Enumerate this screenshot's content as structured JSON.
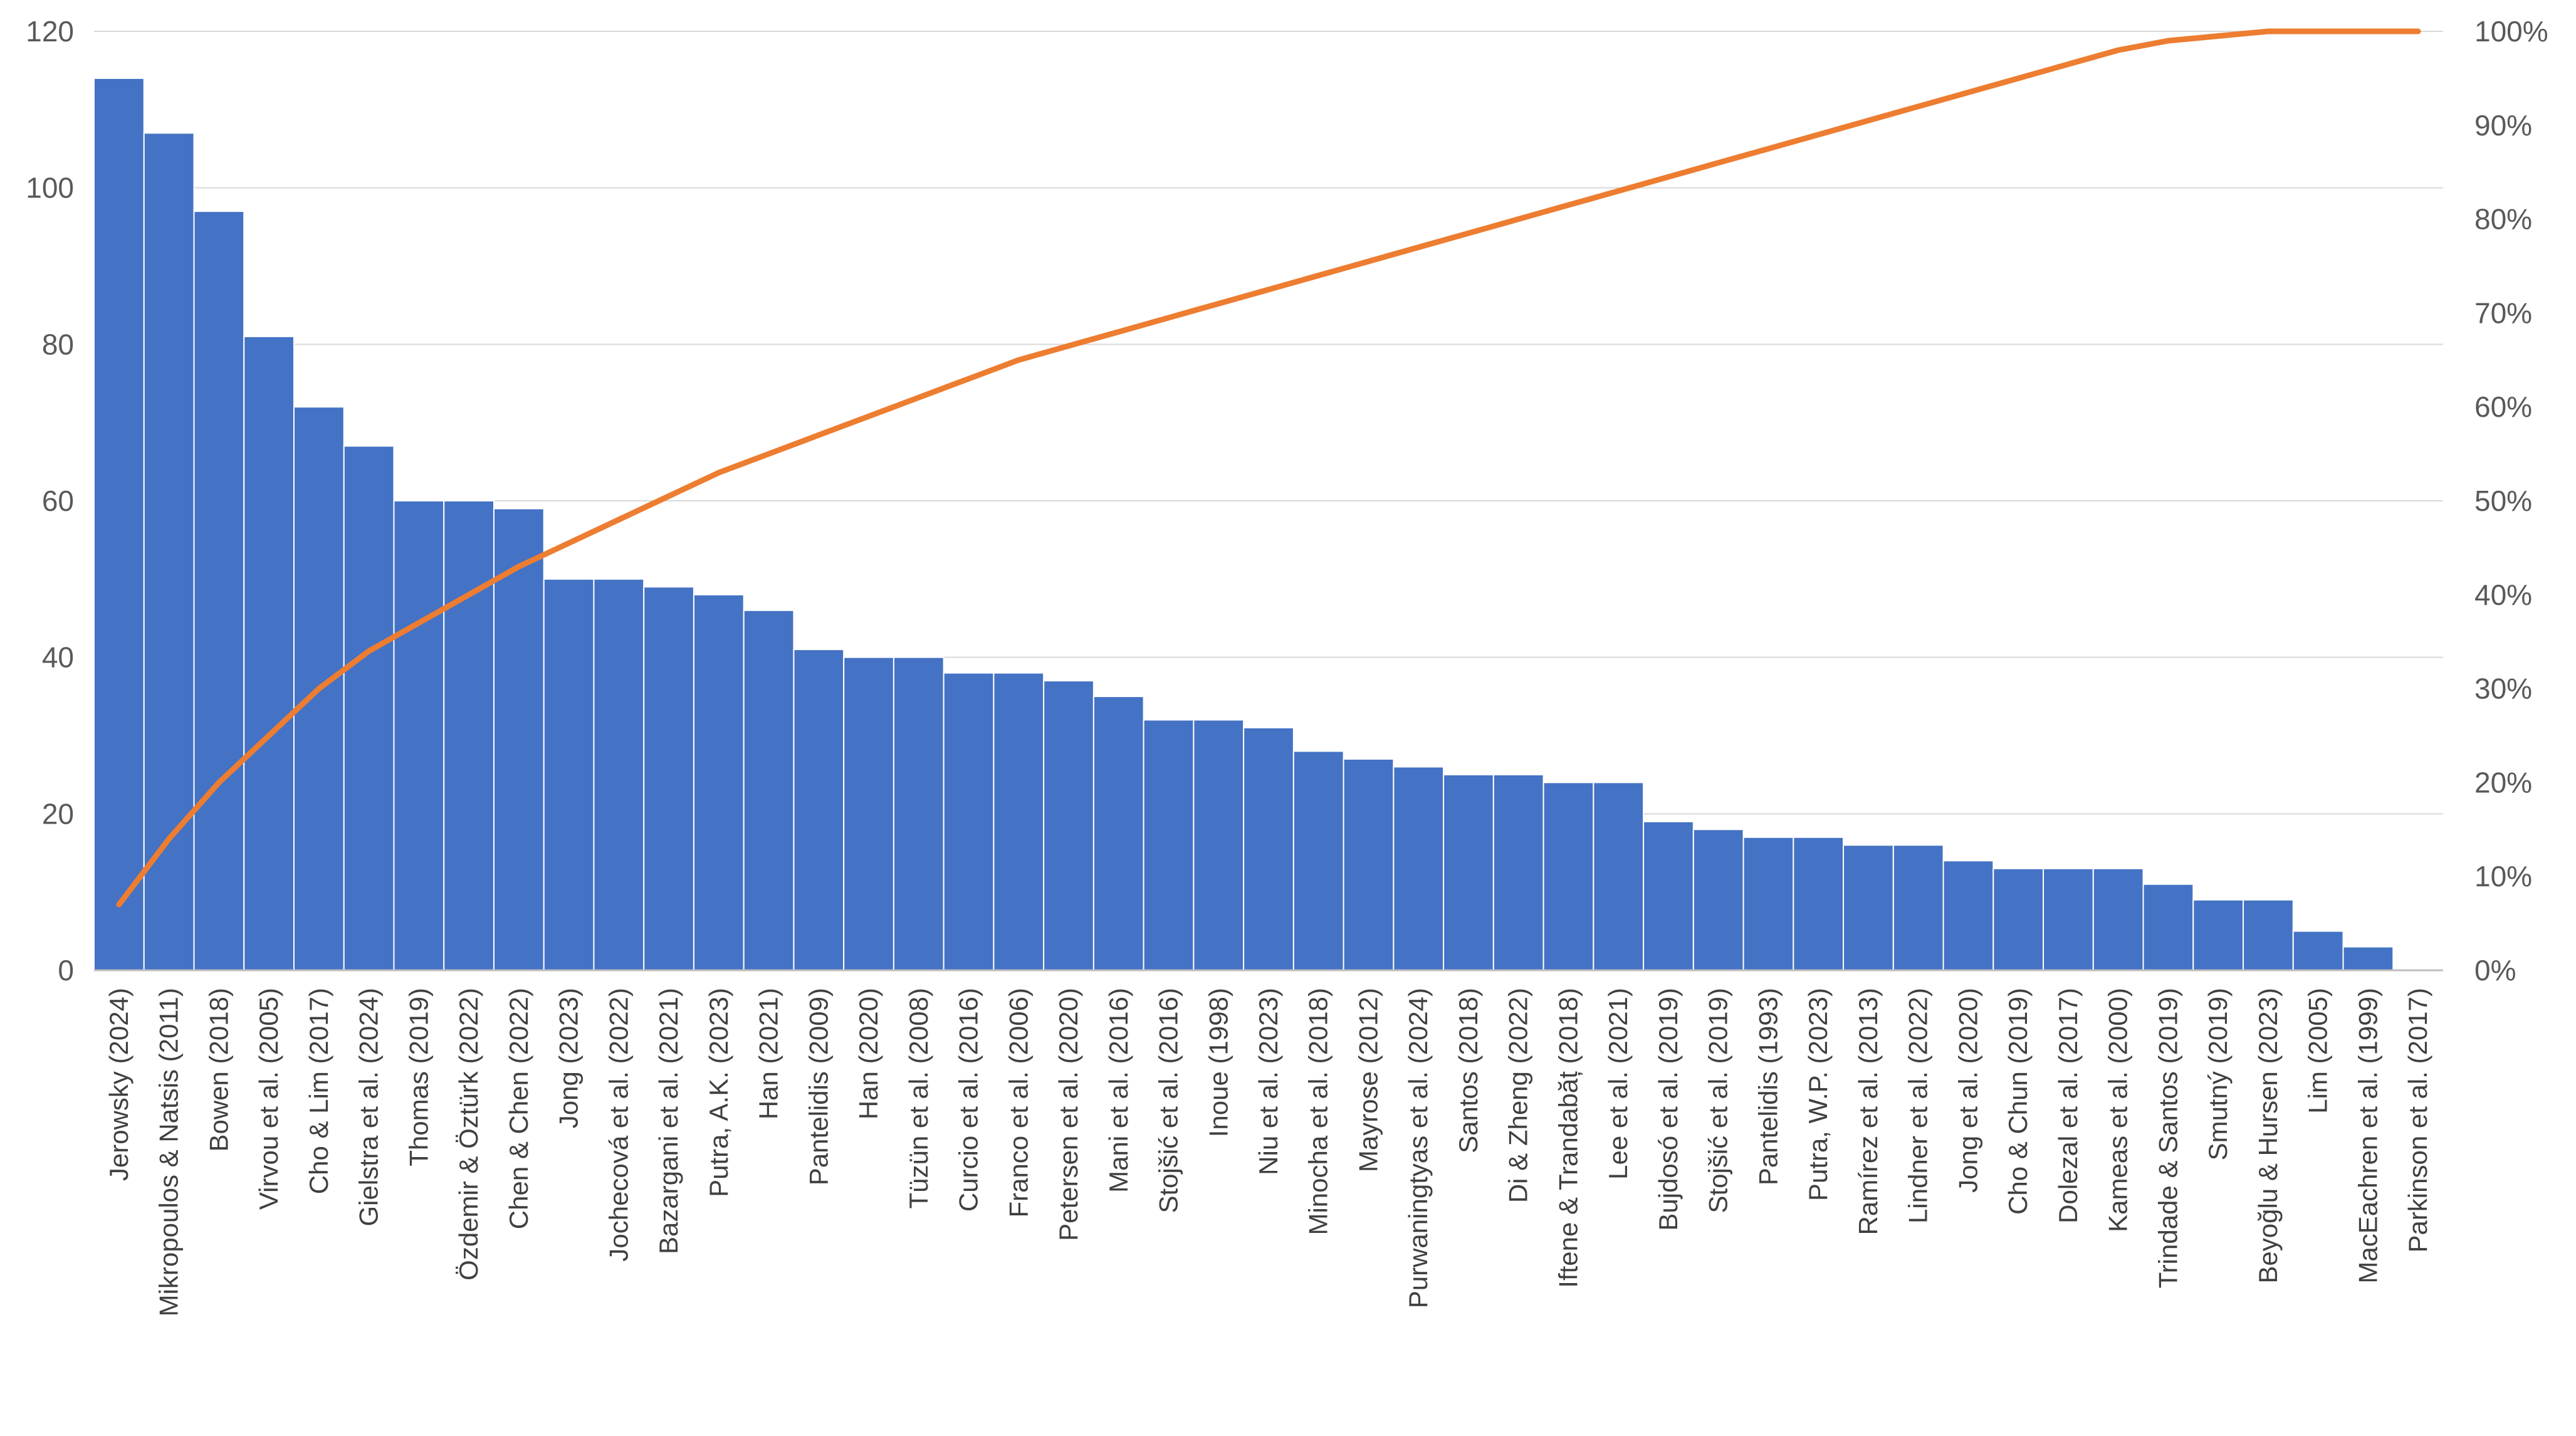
{
  "chart_data": {
    "type": "bar",
    "categories": [
      "Jerowsky (2024)",
      "Mikropoulos & Natsis (2011)",
      "Bowen (2018)",
      "Virvou et al. (2005)",
      "Cho & Lim (2017)",
      "Gielstra et al. (2024)",
      "Thomas (2019)",
      "Özdemir & Öztürk (2022)",
      "Chen & Chen (2022)",
      "Jong (2023)",
      "Jochecová et al. (2022)",
      "Bazargani et al. (2021)",
      "Putra, A.K. (2023)",
      "Han (2021)",
      "Pantelidis (2009)",
      "Han (2020)",
      "Tüzün et al. (2008)",
      "Curcio et al. (2016)",
      "Franco et al. (2006)",
      "Petersen et al. (2020)",
      "Mani et al. (2016)",
      "Stojšić et al. (2016)",
      "Inoue (1998)",
      "Niu et al. (2023)",
      "Minocha et al. (2018)",
      "Mayrose (2012)",
      "Purwaningtyas et al. (2024)",
      "Santos (2018)",
      "Di & Zheng (2022)",
      "Iftene & Trandabăț (2018)",
      "Lee et al. (2021)",
      "Bujdosó et al. (2019)",
      "Stojšić et al. (2019)",
      "Pantelidis (1993)",
      "Putra, W.P. (2023)",
      "Ramírez et al. (2013)",
      "Lindner et al. (2022)",
      "Jong et al. (2020)",
      "Cho & Chun (2019)",
      "Dolezal et al. (2017)",
      "Kameas et al. (2000)",
      "Trindade & Santos (2019)",
      "Smutný (2019)",
      "Beyoğlu & Hursen (2023)",
      "Lim (2005)",
      "MacEachren et al. (1999)",
      "Parkinson et al. (2017)"
    ],
    "series": [
      {
        "type": "bar",
        "axis": "left",
        "color": "#4472C4",
        "values": [
          114,
          107,
          97,
          81,
          72,
          67,
          60,
          60,
          59,
          50,
          50,
          49,
          48,
          46,
          41,
          40,
          40,
          38,
          38,
          37,
          35,
          32,
          32,
          31,
          28,
          27,
          26,
          25,
          25,
          24,
          24,
          19,
          18,
          17,
          17,
          16,
          16,
          14,
          13,
          13,
          13,
          11,
          9,
          9,
          5,
          3,
          0
        ]
      },
      {
        "type": "line",
        "axis": "right",
        "color": "#ED7D31",
        "values": [
          7,
          14,
          20,
          25,
          30,
          34,
          37,
          40,
          43,
          45.5,
          48,
          50.5,
          53,
          55,
          57,
          59,
          61,
          63,
          65,
          66.5,
          68,
          69.5,
          71,
          72.5,
          74,
          75.5,
          77,
          78.5,
          80,
          81.5,
          83,
          84.5,
          86,
          87.5,
          89,
          90.5,
          92,
          93.5,
          95,
          96.5,
          98,
          99,
          99.5,
          100,
          100,
          100,
          100
        ]
      }
    ],
    "y_left": {
      "min": 0,
      "max": 120,
      "ticks": [
        "0",
        "20",
        "40",
        "60",
        "80",
        "100",
        "120"
      ]
    },
    "y_right": {
      "min": 0,
      "max": 100,
      "ticks": [
        "0%",
        "10%",
        "20%",
        "30%",
        "40%",
        "50%",
        "60%",
        "70%",
        "80%",
        "90%",
        "100%"
      ]
    },
    "grid": true,
    "legend": "none"
  }
}
